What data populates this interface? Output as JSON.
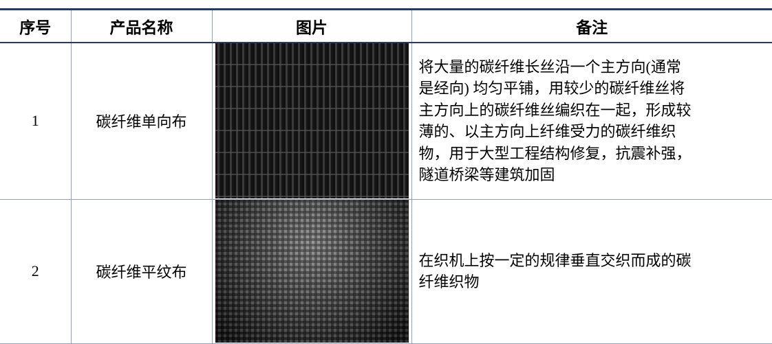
{
  "table": {
    "header": [
      "序号",
      "产品名称",
      "图片",
      "备注"
    ],
    "rows": [
      {
        "no": "1",
        "name": "碳纤维单向布",
        "note": "将大量的碳纤维长丝沿一个主方向(通常是经向) 均匀平铺，用较少的碳纤维丝将主方向上的碳纤维丝编织在一起，形成较薄的、以主方向上纤维受力的碳纤维织物，用于大型工程结构修复，抗震补强，隧道桥梁等建筑加固"
      },
      {
        "no": "2",
        "name": "碳纤维平纹布",
        "note": "在织机上按一定的规律垂直交织而成的碳纤维织物"
      }
    ]
  }
}
